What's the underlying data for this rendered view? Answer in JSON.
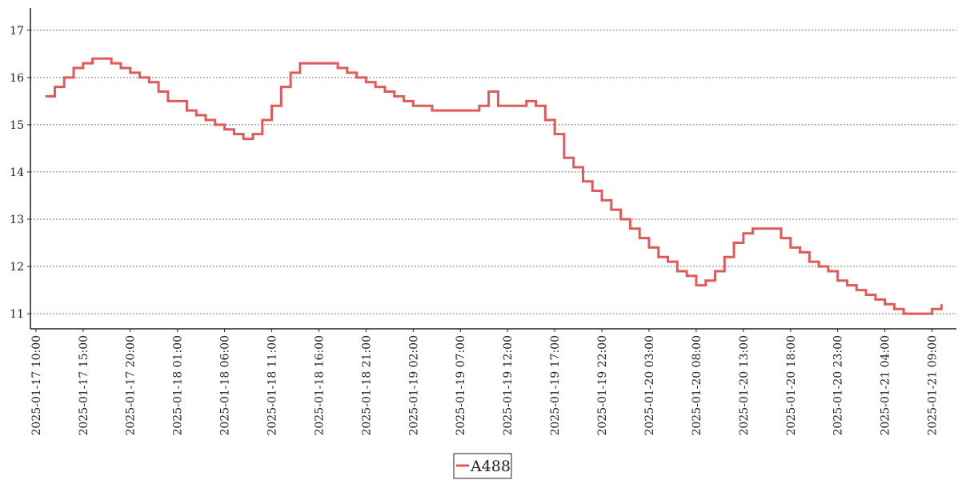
{
  "chart_data": {
    "type": "step",
    "x": [
      "2025-01-17 11:00",
      "2025-01-17 12:00",
      "2025-01-17 13:00",
      "2025-01-17 14:00",
      "2025-01-17 15:00",
      "2025-01-17 16:00",
      "2025-01-17 17:00",
      "2025-01-17 18:00",
      "2025-01-17 19:00",
      "2025-01-17 20:00",
      "2025-01-17 21:00",
      "2025-01-17 22:00",
      "2025-01-17 23:00",
      "2025-01-18 00:00",
      "2025-01-18 01:00",
      "2025-01-18 02:00",
      "2025-01-18 03:00",
      "2025-01-18 04:00",
      "2025-01-18 05:00",
      "2025-01-18 06:00",
      "2025-01-18 07:00",
      "2025-01-18 08:00",
      "2025-01-18 09:00",
      "2025-01-18 10:00",
      "2025-01-18 11:00",
      "2025-01-18 12:00",
      "2025-01-18 13:00",
      "2025-01-18 14:00",
      "2025-01-18 15:00",
      "2025-01-18 16:00",
      "2025-01-18 17:00",
      "2025-01-18 18:00",
      "2025-01-18 19:00",
      "2025-01-18 20:00",
      "2025-01-18 21:00",
      "2025-01-18 22:00",
      "2025-01-18 23:00",
      "2025-01-19 00:00",
      "2025-01-19 01:00",
      "2025-01-19 02:00",
      "2025-01-19 03:00",
      "2025-01-19 04:00",
      "2025-01-19 05:00",
      "2025-01-19 06:00",
      "2025-01-19 07:00",
      "2025-01-19 08:00",
      "2025-01-19 09:00",
      "2025-01-19 10:00",
      "2025-01-19 11:00",
      "2025-01-19 12:00",
      "2025-01-19 13:00",
      "2025-01-19 14:00",
      "2025-01-19 15:00",
      "2025-01-19 16:00",
      "2025-01-19 17:00",
      "2025-01-19 18:00",
      "2025-01-19 19:00",
      "2025-01-19 20:00",
      "2025-01-19 21:00",
      "2025-01-19 22:00",
      "2025-01-19 23:00",
      "2025-01-20 00:00",
      "2025-01-20 01:00",
      "2025-01-20 02:00",
      "2025-01-20 03:00",
      "2025-01-20 04:00",
      "2025-01-20 05:00",
      "2025-01-20 06:00",
      "2025-01-20 07:00",
      "2025-01-20 08:00",
      "2025-01-20 09:00",
      "2025-01-20 10:00",
      "2025-01-20 11:00",
      "2025-01-20 12:00",
      "2025-01-20 13:00",
      "2025-01-20 14:00",
      "2025-01-20 15:00",
      "2025-01-20 16:00",
      "2025-01-20 17:00",
      "2025-01-20 18:00",
      "2025-01-20 19:00",
      "2025-01-20 20:00",
      "2025-01-20 21:00",
      "2025-01-20 22:00",
      "2025-01-20 23:00",
      "2025-01-21 00:00",
      "2025-01-21 01:00",
      "2025-01-21 02:00",
      "2025-01-21 03:00",
      "2025-01-21 04:00",
      "2025-01-21 05:00",
      "2025-01-21 06:00",
      "2025-01-21 07:00",
      "2025-01-21 08:00",
      "2025-01-21 09:00",
      "2025-01-21 10:00"
    ],
    "series": [
      {
        "name": "A488",
        "color": "#e05a5a",
        "values": [
          15.6,
          15.8,
          16.0,
          16.2,
          16.3,
          16.4,
          16.4,
          16.3,
          16.2,
          16.1,
          16.0,
          15.9,
          15.7,
          15.5,
          15.5,
          15.3,
          15.2,
          15.1,
          15.0,
          14.9,
          14.8,
          14.7,
          14.8,
          15.1,
          15.4,
          15.8,
          16.1,
          16.3,
          16.3,
          16.3,
          16.3,
          16.2,
          16.1,
          16.0,
          15.9,
          15.8,
          15.7,
          15.6,
          15.5,
          15.4,
          15.4,
          15.3,
          15.3,
          15.3,
          15.3,
          15.3,
          15.4,
          15.7,
          15.4,
          15.4,
          15.4,
          15.5,
          15.4,
          15.1,
          14.8,
          14.3,
          14.1,
          13.8,
          13.6,
          13.4,
          13.2,
          13.0,
          12.8,
          12.6,
          12.4,
          12.2,
          12.1,
          11.9,
          11.8,
          11.6,
          11.7,
          11.9,
          12.2,
          12.5,
          12.7,
          12.8,
          12.8,
          12.8,
          12.6,
          12.4,
          12.3,
          12.1,
          12.0,
          11.9,
          11.7,
          11.6,
          11.5,
          11.4,
          11.3,
          11.2,
          11.1,
          11.0,
          11.0,
          11.0,
          11.1,
          11.2
        ]
      }
    ],
    "xlim": [
      "2025-01-17 09:25",
      "2025-01-21 11:35"
    ],
    "xticks": [
      "2025-01-17 10:00",
      "2025-01-17 15:00",
      "2025-01-17 20:00",
      "2025-01-18 01:00",
      "2025-01-18 06:00",
      "2025-01-18 11:00",
      "2025-01-18 16:00",
      "2025-01-18 21:00",
      "2025-01-19 02:00",
      "2025-01-19 07:00",
      "2025-01-19 12:00",
      "2025-01-19 17:00",
      "2025-01-19 22:00",
      "2025-01-20 03:00",
      "2025-01-20 08:00",
      "2025-01-20 13:00",
      "2025-01-20 18:00",
      "2025-01-20 23:00",
      "2025-01-21 04:00",
      "2025-01-21 09:00"
    ],
    "ylim": [
      10.68,
      17.47
    ],
    "yticks": [
      11,
      12,
      13,
      14,
      15,
      16,
      17
    ],
    "grid": true
  }
}
